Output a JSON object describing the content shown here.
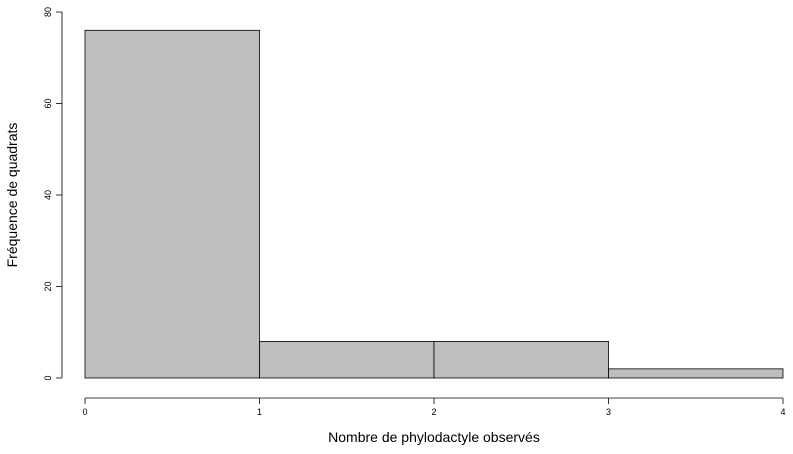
{
  "chart_data": {
    "type": "bar",
    "bins": [
      {
        "start": 0,
        "end": 1,
        "value": 76
      },
      {
        "start": 1,
        "end": 2,
        "value": 8
      },
      {
        "start": 2,
        "end": 3,
        "value": 8
      },
      {
        "start": 3,
        "end": 4,
        "value": 2
      }
    ],
    "xlabel": "Nombre de phylodactyle observés",
    "ylabel": "Fréquence de quadrats",
    "xlim": [
      0,
      4
    ],
    "ylim": [
      0,
      80
    ],
    "xticks": [
      "0",
      "1",
      "2",
      "3",
      "4"
    ],
    "yticks": [
      "0",
      "20",
      "40",
      "60",
      "80"
    ],
    "grid": false,
    "bar_color": "#bebebe"
  }
}
